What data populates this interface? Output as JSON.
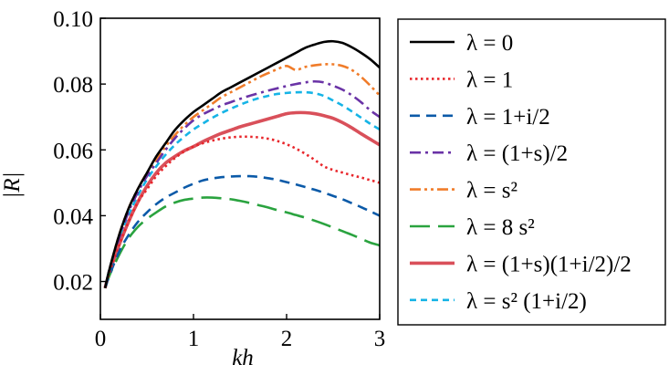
{
  "chart_data": {
    "type": "line",
    "title": "",
    "xlabel": "kh",
    "ylabel": "|R|",
    "xlim": [
      0,
      3
    ],
    "ylim": [
      0.0085,
      0.1
    ],
    "xticks": [
      {
        "value": 0,
        "label": "0"
      },
      {
        "value": 1,
        "label": "1"
      },
      {
        "value": 2,
        "label": "2"
      },
      {
        "value": 3,
        "label": "3"
      }
    ],
    "yticks": [
      {
        "value": 0.02,
        "label": "0.02"
      },
      {
        "value": 0.04,
        "label": "0.04"
      },
      {
        "value": 0.06,
        "label": "0.06"
      },
      {
        "value": 0.08,
        "label": "0.08"
      },
      {
        "value": 0.1,
        "label": "0.10"
      }
    ],
    "x": [
      0.05,
      0.1,
      0.2,
      0.3,
      0.4,
      0.5,
      0.6,
      0.7,
      0.8,
      0.9,
      1.0,
      1.1,
      1.2,
      1.3,
      1.4,
      1.5,
      1.6,
      1.7,
      1.8,
      1.9,
      2.0,
      2.1,
      2.2,
      2.3,
      2.4,
      2.5,
      2.6,
      2.7,
      2.8,
      2.9,
      3.0
    ],
    "legend_position": "right",
    "series": [
      {
        "name": "λ = 0",
        "color": "#000000",
        "dash": "solid",
        "values": [
          0.018,
          0.024,
          0.034,
          0.042,
          0.048,
          0.053,
          0.058,
          0.062,
          0.066,
          0.069,
          0.0715,
          0.0735,
          0.0755,
          0.0775,
          0.079,
          0.0805,
          0.082,
          0.0835,
          0.085,
          0.0865,
          0.088,
          0.0895,
          0.091,
          0.092,
          0.0928,
          0.093,
          0.0925,
          0.0912,
          0.0895,
          0.0875,
          0.085
        ]
      },
      {
        "name": "λ = 1",
        "color": "#e8262b",
        "dash": "dotted",
        "values": [
          0.018,
          0.023,
          0.031,
          0.038,
          0.044,
          0.048,
          0.052,
          0.055,
          0.0575,
          0.0595,
          0.061,
          0.062,
          0.0628,
          0.0634,
          0.0638,
          0.064,
          0.064,
          0.0638,
          0.0634,
          0.0627,
          0.0617,
          0.0604,
          0.0588,
          0.057,
          0.055,
          0.0539,
          0.0531,
          0.0523,
          0.0516,
          0.0508,
          0.05
        ]
      },
      {
        "name": "λ = 1+i/2",
        "color": "#0b5aa8",
        "dash": "dashed",
        "values": [
          0.018,
          0.022,
          0.029,
          0.034,
          0.038,
          0.041,
          0.0435,
          0.0455,
          0.047,
          0.0485,
          0.0497,
          0.0507,
          0.0513,
          0.0517,
          0.0519,
          0.052,
          0.052,
          0.0518,
          0.0514,
          0.0509,
          0.0502,
          0.0495,
          0.0487,
          0.0479,
          0.047,
          0.046,
          0.045,
          0.0438,
          0.0426,
          0.0413,
          0.04
        ]
      },
      {
        "name": "λ = (1+s)/2",
        "color": "#6a33a6",
        "dash": "dashdot",
        "values": [
          0.018,
          0.024,
          0.033,
          0.041,
          0.047,
          0.052,
          0.056,
          0.06,
          0.0635,
          0.0665,
          0.069,
          0.0708,
          0.0722,
          0.0735,
          0.0745,
          0.0755,
          0.0764,
          0.0772,
          0.078,
          0.0787,
          0.0794,
          0.08,
          0.0805,
          0.0808,
          0.0805,
          0.0795,
          0.0783,
          0.0766,
          0.0745,
          0.072,
          0.07
        ]
      },
      {
        "name": "λ = s²",
        "color": "#f07c2a",
        "dash": "dashdotdot",
        "values": [
          0.018,
          0.024,
          0.034,
          0.042,
          0.048,
          0.053,
          0.057,
          0.061,
          0.0645,
          0.0675,
          0.07,
          0.072,
          0.074,
          0.076,
          0.0775,
          0.079,
          0.0805,
          0.082,
          0.0833,
          0.0845,
          0.0855,
          0.0843,
          0.0852,
          0.0857,
          0.086,
          0.086,
          0.0855,
          0.0843,
          0.0822,
          0.0795,
          0.0765
        ]
      },
      {
        "name": "λ = 8 s²",
        "color": "#2aa33f",
        "dash": "longdash",
        "values": [
          0.018,
          0.022,
          0.028,
          0.033,
          0.0365,
          0.039,
          0.041,
          0.0428,
          0.044,
          0.0448,
          0.0452,
          0.0455,
          0.0455,
          0.0453,
          0.045,
          0.0445,
          0.0439,
          0.0432,
          0.0425,
          0.0417,
          0.041,
          0.0402,
          0.0394,
          0.0385,
          0.0375,
          0.0364,
          0.0353,
          0.0342,
          0.033,
          0.0318,
          0.031
        ]
      },
      {
        "name": "λ = (1+s)(1+i/2)/2",
        "color": "#d9505a",
        "dash": "solid-thick",
        "values": [
          0.018,
          0.023,
          0.031,
          0.038,
          0.044,
          0.049,
          0.053,
          0.056,
          0.058,
          0.0597,
          0.061,
          0.0625,
          0.0638,
          0.065,
          0.066,
          0.067,
          0.0678,
          0.0686,
          0.0694,
          0.0702,
          0.071,
          0.0713,
          0.0713,
          0.071,
          0.0704,
          0.0696,
          0.0683,
          0.0667,
          0.0649,
          0.0632,
          0.0615
        ]
      },
      {
        "name": "λ = s² (1+i/2)",
        "color": "#16b4e6",
        "dash": "shortdash",
        "values": [
          0.018,
          0.024,
          0.033,
          0.04,
          0.046,
          0.051,
          0.055,
          0.0585,
          0.0615,
          0.064,
          0.0662,
          0.068,
          0.0697,
          0.0712,
          0.0725,
          0.0737,
          0.0748,
          0.0757,
          0.0764,
          0.077,
          0.0773,
          0.0775,
          0.0775,
          0.0772,
          0.0764,
          0.075,
          0.0735,
          0.0717,
          0.0698,
          0.0679,
          0.0662
        ]
      }
    ]
  }
}
